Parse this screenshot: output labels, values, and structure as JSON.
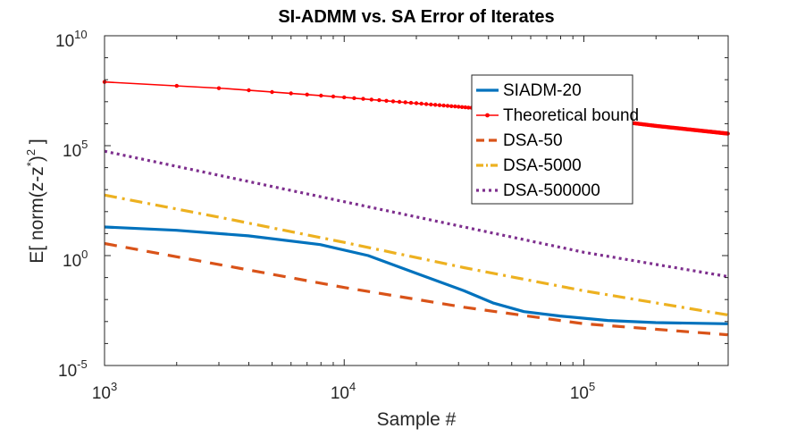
{
  "chart_data": {
    "type": "line",
    "title": "SI-ADMM vs. SA  Error of Iterates",
    "xlabel": "Sample #",
    "ylabel": {
      "prefix": "E[ norm(z-z",
      "sup1": "*",
      "mid": ")",
      "sup2": "2",
      "suffix": " ]"
    },
    "xscale": "log",
    "yscale": "log",
    "xlim": [
      1000,
      400000
    ],
    "ylim_exp": [
      -5,
      10
    ],
    "xticks": [
      {
        "base": "10",
        "exp": "3",
        "value": 1000
      },
      {
        "base": "10",
        "exp": "4",
        "value": 10000
      },
      {
        "base": "10",
        "exp": "5",
        "value": 100000
      }
    ],
    "yticks": [
      {
        "base": "10",
        "exp": "10",
        "value_exp": 10
      },
      {
        "base": "10",
        "exp": "5",
        "value_exp": 5
      },
      {
        "base": "10",
        "exp": "0",
        "value_exp": 0
      },
      {
        "base": "10",
        "exp": "-5",
        "value_exp": -5
      }
    ],
    "legend_position": "top-right",
    "series": [
      {
        "name": "SIADM-20",
        "color": "#0072BD",
        "style": "solid",
        "points_log10": [
          [
            3.0,
            1.3
          ],
          [
            3.3,
            1.15
          ],
          [
            3.6,
            0.9
          ],
          [
            3.9,
            0.5
          ],
          [
            4.1,
            0.0
          ],
          [
            4.3,
            -0.8
          ],
          [
            4.5,
            -1.6
          ],
          [
            4.62,
            -2.15
          ],
          [
            4.75,
            -2.55
          ],
          [
            4.9,
            -2.75
          ],
          [
            5.1,
            -2.95
          ],
          [
            5.3,
            -3.05
          ],
          [
            5.6,
            -3.1
          ]
        ]
      },
      {
        "name": "Theoretical bound",
        "color": "#FF0000",
        "style": "solid-dot",
        "points_log10": [
          [
            3.0,
            7.9
          ],
          [
            3.5,
            7.6
          ],
          [
            4.0,
            7.2
          ],
          [
            4.5,
            6.75
          ],
          [
            5.0,
            6.3
          ],
          [
            5.3,
            5.9
          ],
          [
            5.6,
            5.55
          ]
        ]
      },
      {
        "name": "DSA-50",
        "color": "#D95319",
        "style": "dashed",
        "points_log10": [
          [
            3.0,
            0.55
          ],
          [
            3.5,
            -0.45
          ],
          [
            4.0,
            -1.45
          ],
          [
            4.5,
            -2.35
          ],
          [
            5.0,
            -3.1
          ],
          [
            5.6,
            -3.6
          ]
        ]
      },
      {
        "name": "DSA-5000",
        "color": "#EDB120",
        "style": "dashdot",
        "points_log10": [
          [
            3.0,
            2.75
          ],
          [
            3.5,
            1.7
          ],
          [
            4.0,
            0.6
          ],
          [
            4.5,
            -0.55
          ],
          [
            5.0,
            -1.6
          ],
          [
            5.6,
            -2.7
          ]
        ]
      },
      {
        "name": "DSA-500000",
        "color": "#7E2F8E",
        "style": "dotted",
        "points_log10": [
          [
            3.0,
            4.75
          ],
          [
            3.5,
            3.6
          ],
          [
            4.0,
            2.45
          ],
          [
            4.5,
            1.3
          ],
          [
            5.0,
            0.15
          ],
          [
            5.6,
            -0.95
          ]
        ]
      }
    ]
  }
}
